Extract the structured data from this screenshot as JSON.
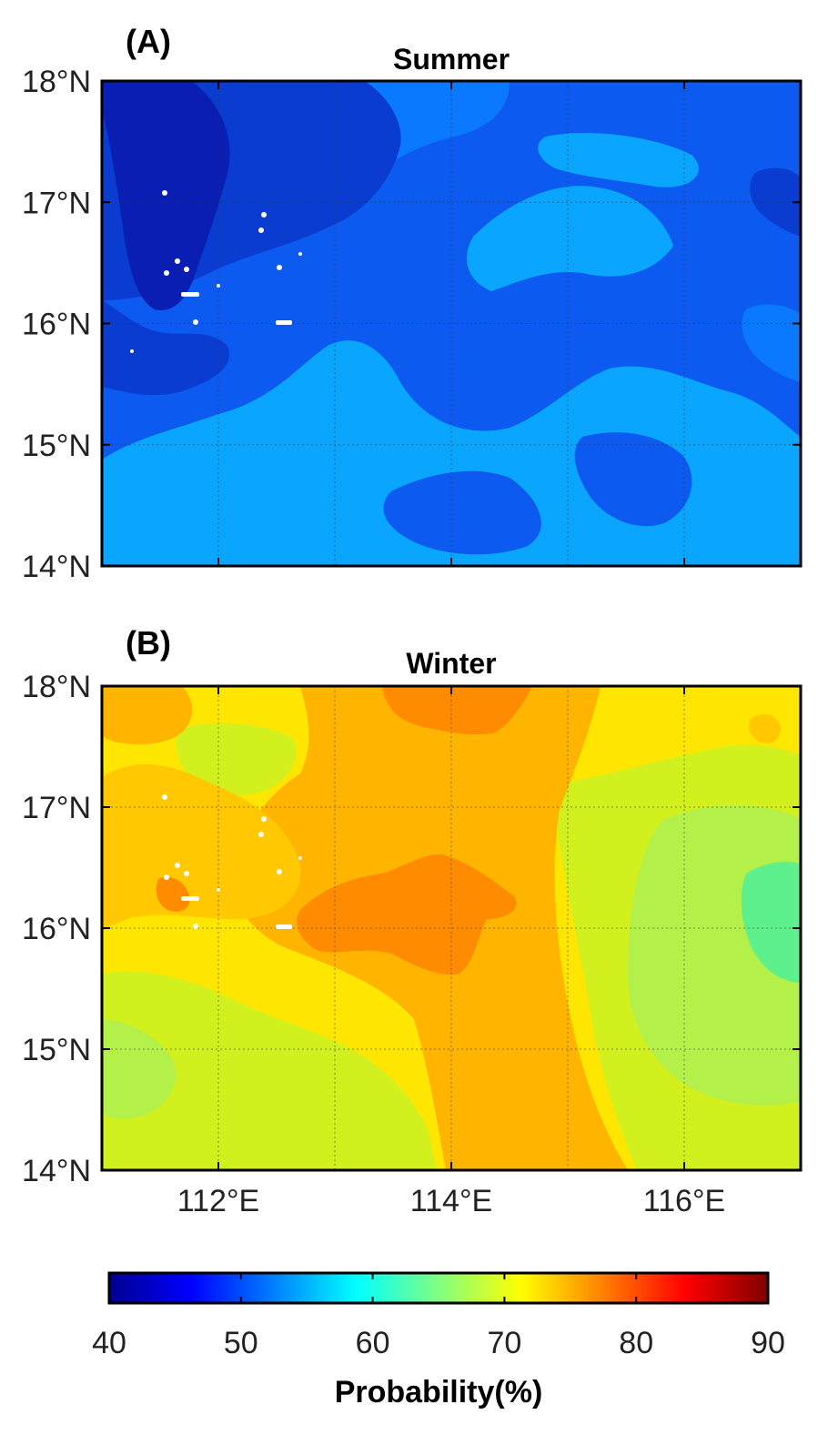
{
  "chart_data": [
    {
      "type": "heatmap",
      "panel_label": "(A)",
      "title": "Summer",
      "xlabel": "",
      "ylabel": "",
      "xlim": [
        111,
        117
      ],
      "ylim": [
        14,
        18
      ],
      "xticks": [
        112,
        114,
        116
      ],
      "xtick_labels": [],
      "yticks": [
        14,
        15,
        16,
        17,
        18
      ],
      "ytick_labels": [
        "14°N",
        "15°N",
        "16°N",
        "17°N",
        "18°N"
      ],
      "grid": true,
      "value_units": "Probability(%)",
      "value_range_shown": [
        41,
        58
      ],
      "regions": [
        {
          "name": "northwest deep blue tongue",
          "lon_range": [
            111,
            113.5
          ],
          "lat_range": [
            15.8,
            18
          ],
          "value": 44
        },
        {
          "name": "north central blue",
          "lon_range": [
            112,
            117
          ],
          "lat_range": [
            16.5,
            18
          ],
          "value": 52
        },
        {
          "name": "central band",
          "lon_range": [
            111,
            117
          ],
          "lat_range": [
            15.2,
            16.5
          ],
          "value": 53
        },
        {
          "name": "southern light blue patches",
          "lon_range": [
            111,
            117
          ],
          "lat_range": [
            14,
            15.2
          ],
          "value": 57
        }
      ]
    },
    {
      "type": "heatmap",
      "panel_label": "(B)",
      "title": "Winter",
      "xlabel": "",
      "ylabel": "",
      "xlim": [
        111,
        117
      ],
      "ylim": [
        14,
        18
      ],
      "xticks": [
        112,
        114,
        116
      ],
      "xtick_labels": [
        "112°E",
        "114°E",
        "116°E"
      ],
      "yticks": [
        14,
        15,
        16,
        17,
        18
      ],
      "ytick_labels": [
        "14°N",
        "15°N",
        "16°N",
        "17°N",
        "18°N"
      ],
      "grid": true,
      "value_units": "Probability(%)",
      "value_range_shown": [
        64,
        81
      ],
      "regions": [
        {
          "name": "central orange core",
          "lon_range": [
            112.8,
            114.6
          ],
          "lat_range": [
            15.7,
            16.6
          ],
          "value": 79
        },
        {
          "name": "central north-south orange band",
          "lon_range": [
            113,
            115
          ],
          "lat_range": [
            14,
            18
          ],
          "value": 77
        },
        {
          "name": "western yellow-orange",
          "lon_range": [
            111,
            113
          ],
          "lat_range": [
            15.5,
            18
          ],
          "value": 74
        },
        {
          "name": "southwest yellow-green",
          "lon_range": [
            111,
            113.5
          ],
          "lat_range": [
            14,
            15.5
          ],
          "value": 70
        },
        {
          "name": "eastern green",
          "lon_range": [
            115.5,
            117
          ],
          "lat_range": [
            14.5,
            17
          ],
          "value": 66
        }
      ]
    }
  ],
  "colorbar": {
    "label": "Probability(%)",
    "min": 40,
    "max": 90,
    "ticks": [
      40,
      50,
      60,
      70,
      80,
      90
    ],
    "tick_labels": [
      "40",
      "50",
      "60",
      "70",
      "80",
      "90"
    ],
    "colormap": "jet"
  },
  "colors": {
    "summer_levels": [
      "#0a1eb4",
      "#0a3ccf",
      "#0d5af0",
      "#0a78ff",
      "#0aa5ff"
    ],
    "winter_levels": [
      "#5ef08c",
      "#b4f04a",
      "#d2f01e",
      "#ffe600",
      "#ffc800",
      "#ffb400",
      "#ff8c00"
    ],
    "jet": [
      "#00008f",
      "#0000ff",
      "#0080ff",
      "#00ffff",
      "#80ff80",
      "#ffff00",
      "#ff8000",
      "#ff0000",
      "#800000"
    ]
  }
}
